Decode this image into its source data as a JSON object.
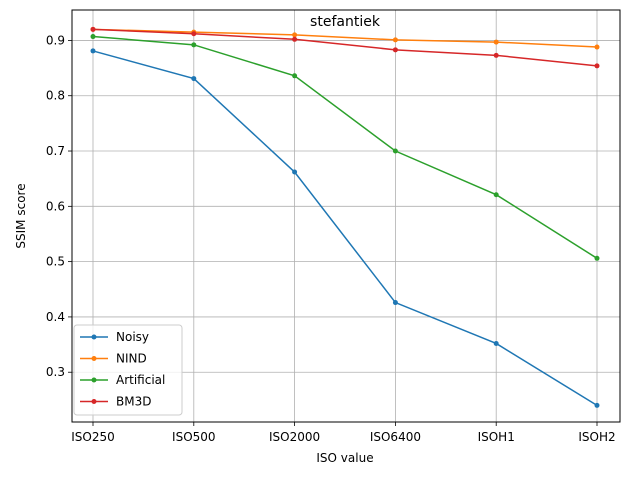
{
  "chart_data": {
    "type": "line",
    "title": "stefantiek",
    "xlabel": "ISO value",
    "ylabel": "SSIM score",
    "categories": [
      "ISO250",
      "ISO500",
      "ISO2000",
      "ISO6400",
      "ISOH1",
      "ISOH2"
    ],
    "ylim": [
      0.21,
      0.955
    ],
    "yticks": [
      0.3,
      0.4,
      0.5,
      0.6,
      0.7,
      0.8,
      0.9
    ],
    "grid": true,
    "legend_position": "lower-left",
    "series": [
      {
        "name": "Noisy",
        "color": "#1f77b4",
        "values": [
          0.881,
          0.831,
          0.662,
          0.426,
          0.352,
          0.24
        ]
      },
      {
        "name": "NIND",
        "color": "#ff7f0e",
        "values": [
          0.92,
          0.915,
          0.91,
          0.901,
          0.897,
          0.888
        ]
      },
      {
        "name": "Artificial",
        "color": "#2ca02c",
        "values": [
          0.907,
          0.892,
          0.836,
          0.7,
          0.621,
          0.506
        ]
      },
      {
        "name": "BM3D",
        "color": "#d62728",
        "values": [
          0.92,
          0.912,
          0.902,
          0.883,
          0.873,
          0.854
        ]
      }
    ]
  }
}
